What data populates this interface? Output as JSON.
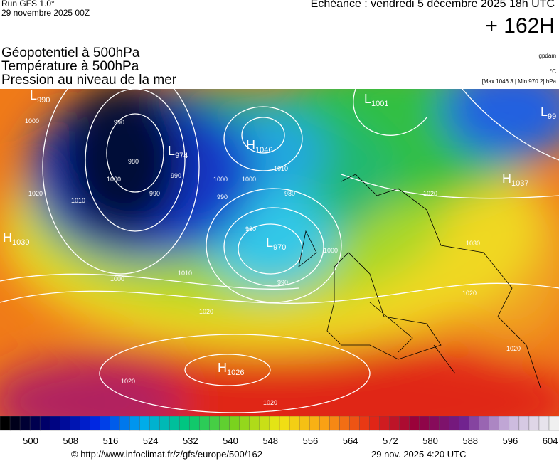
{
  "header": {
    "run": "Run GFS 1.0°",
    "date": "29 novembre 2025 00Z",
    "echeance": "Echéance : vendredi 5 décembre 2025 18h UTC",
    "lead": "+ 162H"
  },
  "titles": [
    "Géopotentiel à 500hPa",
    "Température à 500hPa",
    "Pression au niveau de la mer"
  ],
  "units": [
    "gpdam",
    "°C",
    "[Max 1046.3 | Min 970.2] hPa"
  ],
  "centers": [
    {
      "letter": "L",
      "value": "990"
    },
    {
      "letter": "L",
      "value": "974"
    },
    {
      "letter": "H",
      "value": "1046"
    },
    {
      "letter": "L",
      "value": "1001"
    },
    {
      "letter": "L",
      "value": "99"
    },
    {
      "letter": "H",
      "value": "1037"
    },
    {
      "letter": "H",
      "value": "1030"
    },
    {
      "letter": "L",
      "value": "970"
    },
    {
      "letter": "H",
      "value": "1026"
    }
  ],
  "isobar_labels": [
    "1000",
    "990",
    "980",
    "1000",
    "990",
    "1020",
    "1010",
    "1000",
    "990",
    "1010",
    "1000",
    "990",
    "980",
    "960",
    "1000",
    "990",
    "1010",
    "1000",
    "1020",
    "1020",
    "1020",
    "1020",
    "1030",
    "1020",
    "1020"
  ],
  "colorbar": [
    "500",
    "508",
    "516",
    "524",
    "532",
    "540",
    "548",
    "556",
    "564",
    "572",
    "580",
    "588",
    "596",
    "604"
  ],
  "footer": {
    "url": "© http://www.infoclimat.fr/z/gfs/europe/500/162",
    "time": "29 nov. 2025  4:20 UTC"
  }
}
